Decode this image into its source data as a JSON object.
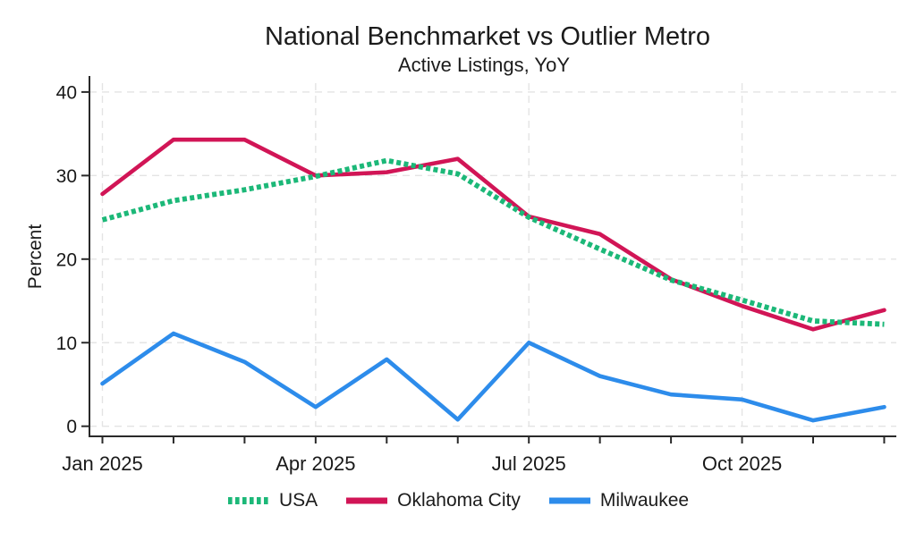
{
  "header": {
    "title": "National Benchmarket vs Outlier Metro",
    "subtitle": "Active Listings, YoY"
  },
  "chart_data": {
    "type": "line",
    "title": "National Benchmarket vs Outlier Metro",
    "subtitle": "Active Listings, YoY",
    "xlabel": "",
    "ylabel": "Percent",
    "ylim": [
      0,
      40
    ],
    "y_ticks": [
      0,
      10,
      20,
      30,
      40
    ],
    "x": [
      "Jan 2025",
      "Feb 2025",
      "Mar 2025",
      "Apr 2025",
      "May 2025",
      "Jun 2025",
      "Jul 2025",
      "Aug 2025",
      "Sep 2025",
      "Oct 2025",
      "Nov 2025",
      "Dec 2025"
    ],
    "x_tick_labels": [
      "Jan 2025",
      "Apr 2025",
      "Jul 2025",
      "Oct 2025"
    ],
    "x_labeled_indices": [
      0,
      3,
      6,
      9
    ],
    "grid": "light gray dashed horizontal lines at each y tick and vertical lines at labeled months",
    "legend_position": "bottom",
    "series": [
      {
        "name": "USA",
        "color": "#1cb878",
        "line_style": "dashed",
        "values": [
          24.7,
          27.0,
          28.3,
          29.9,
          31.8,
          30.2,
          25.0,
          21.2,
          17.5,
          15.1,
          12.6,
          12.2
        ]
      },
      {
        "name": "Oklahoma City",
        "color": "#d11556",
        "line_style": "solid",
        "values": [
          27.8,
          34.3,
          34.3,
          30.0,
          30.4,
          32.0,
          25.1,
          23.0,
          17.6,
          14.4,
          11.6,
          13.9
        ]
      },
      {
        "name": "Milwaukee",
        "color": "#2d8ceb",
        "line_style": "solid",
        "values": [
          5.1,
          11.1,
          7.7,
          2.3,
          8.0,
          0.8,
          10.0,
          6.0,
          3.8,
          3.2,
          0.7,
          2.3
        ]
      }
    ]
  }
}
